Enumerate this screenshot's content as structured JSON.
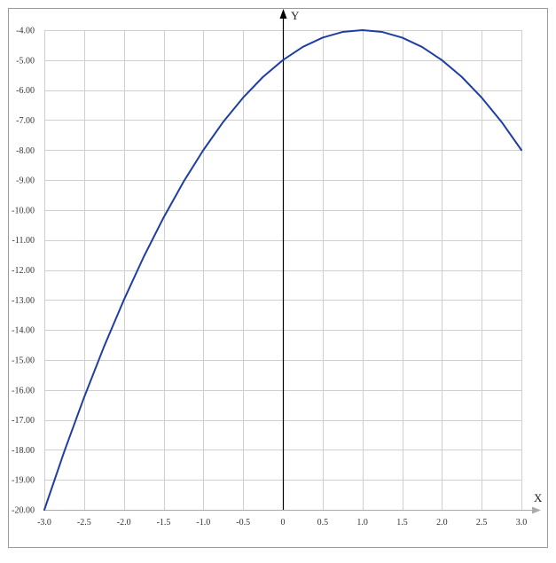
{
  "chart_data": {
    "type": "line",
    "title": "",
    "xlabel": "X",
    "ylabel": "Y",
    "xlim": [
      -3.0,
      3.0
    ],
    "ylim": [
      -20.0,
      -4.0
    ],
    "grid": true,
    "x_ticks": [
      -3.0,
      -2.5,
      -2.0,
      -1.5,
      -1.0,
      -0.5,
      0,
      0.5,
      1.0,
      1.5,
      2.0,
      2.5,
      3.0
    ],
    "x_tick_labels": [
      "-3.0",
      "-2.5",
      "-2.0",
      "-1.5",
      "-1.0",
      "-0.5",
      "0",
      "0.5",
      "1.0",
      "1.5",
      "2.0",
      "2.5",
      "3.0"
    ],
    "y_ticks": [
      -4,
      -5,
      -6,
      -7,
      -8,
      -9,
      -10,
      -11,
      -12,
      -13,
      -14,
      -15,
      -16,
      -17,
      -18,
      -19,
      -20
    ],
    "y_tick_labels": [
      "-4.00",
      "-5.00",
      "-6.00",
      "-7.00",
      "-8.00",
      "-9.00",
      "-10.00",
      "-11.00",
      "-12.00",
      "-13.00",
      "-14.00",
      "-15.00",
      "-16.00",
      "-17.00",
      "-18.00",
      "-19.00",
      "-20.00"
    ],
    "series": [
      {
        "color": "#1f3fa0",
        "x": [
          -3.0,
          -2.75,
          -2.5,
          -2.25,
          -2.0,
          -1.75,
          -1.5,
          -1.25,
          -1.0,
          -0.75,
          -0.5,
          -0.25,
          0.0,
          0.25,
          0.5,
          0.75,
          1.0,
          1.25,
          1.5,
          1.75,
          2.0,
          2.25,
          2.5,
          2.75,
          3.0
        ],
        "y": [
          -20.0,
          -18.06,
          -16.25,
          -14.56,
          -13.0,
          -11.56,
          -10.25,
          -9.06,
          -8.0,
          -7.06,
          -6.25,
          -5.56,
          -5.0,
          -4.56,
          -4.25,
          -4.06,
          -4.0,
          -4.06,
          -4.25,
          -4.56,
          -5.0,
          -5.56,
          -6.25,
          -7.06,
          -8.0
        ]
      }
    ]
  },
  "colors": {
    "grid": "#cfcfcf",
    "frame": "#9a9a9a",
    "axis": "#000000",
    "x_arrow": "#aaaaaa",
    "curve": "#1f3fa0"
  }
}
